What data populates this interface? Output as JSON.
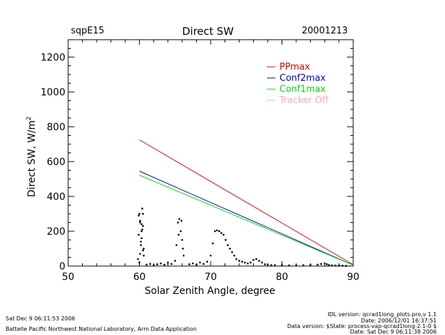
{
  "header": {
    "site": "sqpE15",
    "title": "Direct SW",
    "date": "20001213"
  },
  "footer": {
    "left_line1": "Sat Dec  9 06:11:53 2006",
    "left_line2": "Battelle Pacific Northwest National Laboratory, Arm Data Application",
    "right_line1": "IDL version: qcrad1long_plots.pro,v 1.1",
    "right_line2": "Date: 2006/12/01 16:37:51",
    "right_line3": "Data version: $State: process-vap-qcrad1long-2.1-0 $",
    "right_line4": "Date: Sat Dec  9 06:11:38 2006"
  },
  "chart_data": {
    "type": "scatter",
    "xlabel": "Solar Zenith Angle, degree",
    "ylabel": "Direct SW, W/m",
    "ylabel_sup": "2",
    "xlim": [
      50,
      90
    ],
    "ylim": [
      0,
      1300
    ],
    "x_ticks": [
      50,
      60,
      70,
      80,
      90
    ],
    "y_ticks": [
      0,
      200,
      400,
      600,
      800,
      1000,
      1200
    ],
    "legend_position": "top-right",
    "legend": [
      {
        "name": "PPmax",
        "color": "#dd0000"
      },
      {
        "name": "Conf2max",
        "color": "#0000cc"
      },
      {
        "name": "Conf1max",
        "color": "#00dd00"
      },
      {
        "name": "Tracker Off",
        "color": "#ffaaaa"
      }
    ],
    "lines": [
      {
        "name": "PPmax",
        "color": "#dd0000",
        "x": [
          60,
          90
        ],
        "y": [
          725,
          8
        ]
      },
      {
        "name": "Conf2max",
        "color": "#0000cc",
        "x": [
          60,
          90
        ],
        "y": [
          545,
          5
        ]
      },
      {
        "name": "Conf1max",
        "color": "#00dd00",
        "x": [
          60,
          90
        ],
        "y": [
          522,
          5
        ]
      }
    ],
    "points": {
      "color": "#000000",
      "x": [
        59.8,
        59.9,
        60.0,
        60.1,
        60.2,
        60.3,
        60.4,
        60.5,
        60.6,
        59.9,
        60.1,
        60.3,
        60.5,
        60.2,
        60.4,
        60.0,
        60.6,
        60.3,
        60.1,
        60.5,
        61.0,
        61.5,
        62.0,
        62.5,
        63.0,
        63.5,
        64.0,
        64.5,
        65.0,
        65.2,
        65.4,
        65.6,
        65.8,
        66.0,
        66.2,
        65.5,
        65.9,
        66.1,
        67.0,
        67.5,
        68.0,
        68.5,
        69.0,
        69.5,
        70.0,
        70.3,
        70.6,
        70.9,
        71.2,
        71.5,
        71.8,
        72.1,
        72.4,
        72.7,
        73.0,
        73.3,
        73.6,
        74.0,
        74.4,
        74.8,
        75.2,
        75.6,
        76.0,
        76.4,
        76.8,
        77.2,
        77.6,
        78.0,
        78.5,
        79.0,
        80.0,
        81.0,
        82.0,
        83.0,
        84.0,
        85.0,
        85.5,
        86.0,
        86.3,
        86.6,
        87.0,
        87.5,
        88.0,
        88.5,
        89.0
      ],
      "y": [
        40,
        180,
        300,
        250,
        120,
        200,
        330,
        90,
        60,
        290,
        260,
        240,
        300,
        140,
        210,
        20,
        100,
        160,
        70,
        230,
        8,
        12,
        5,
        10,
        15,
        8,
        20,
        12,
        30,
        120,
        250,
        270,
        200,
        150,
        60,
        180,
        260,
        100,
        10,
        15,
        8,
        20,
        12,
        25,
        60,
        130,
        200,
        205,
        200,
        190,
        180,
        150,
        120,
        100,
        80,
        60,
        40,
        30,
        25,
        20,
        15,
        20,
        35,
        40,
        30,
        20,
        10,
        8,
        5,
        5,
        5,
        4,
        4,
        5,
        6,
        8,
        12,
        15,
        10,
        6,
        4,
        3,
        2,
        2,
        1
      ]
    }
  }
}
